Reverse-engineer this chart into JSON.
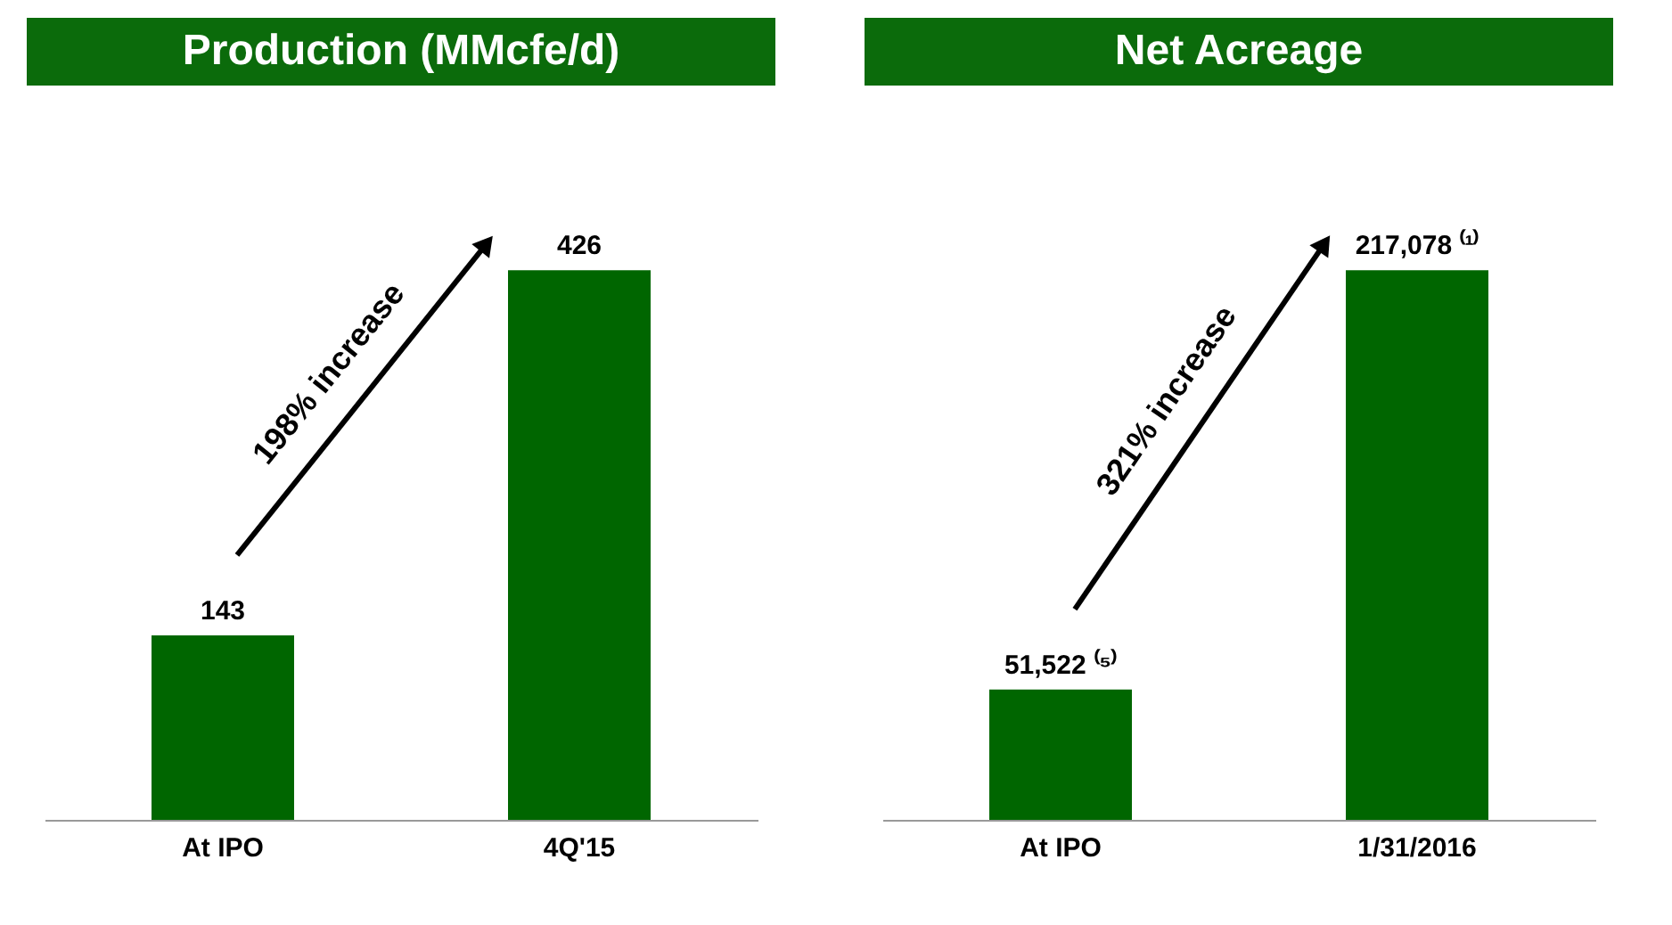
{
  "chart_data": [
    {
      "type": "bar",
      "title": "Production (MMcfe/d)",
      "categories": [
        "At IPO",
        "4Q'15"
      ],
      "values": [
        143,
        426
      ],
      "color": "#006600",
      "data_labels": true,
      "annotations": [
        "198% increase"
      ]
    },
    {
      "type": "bar",
      "title": "Net Acreage",
      "categories": [
        "At IPO",
        "1/31/2016"
      ],
      "values": [
        51522,
        217078
      ],
      "color": "#006600",
      "value_labels": [
        "51,522 ⁽⁵⁾",
        "217,078 ⁽¹⁾"
      ],
      "annotations": [
        "321% increase"
      ]
    }
  ]
}
